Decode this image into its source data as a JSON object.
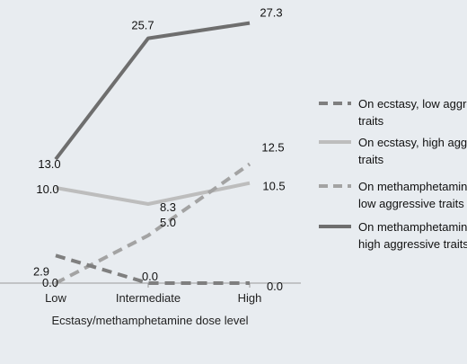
{
  "chart_data": {
    "type": "line",
    "categories": [
      "Low",
      "Intermediate",
      "High"
    ],
    "xlabel": "Ecstasy/methamphetamine dose level",
    "ylabel": "",
    "ylim": [
      0,
      30
    ],
    "grid": false,
    "legend_position": "right",
    "series": [
      {
        "name": "On ecstasy, low aggressive traits",
        "legend_lines": [
          "On ecstasy, low aggre",
          "traits"
        ],
        "values": [
          2.9,
          0.0,
          0.0
        ],
        "labels": [
          "2.9",
          "0.0",
          "0.0"
        ],
        "style": "dashed",
        "color": "#7f7f7f"
      },
      {
        "name": "On ecstasy, high aggressive traits",
        "legend_lines": [
          "On ecstasy, high agg",
          "traits"
        ],
        "values": [
          10.0,
          8.3,
          10.5
        ],
        "labels": [
          "10.0",
          "8.3",
          "10.5"
        ],
        "style": "solid",
        "color": "#bdbdbd"
      },
      {
        "name": "On methamphetamine, low aggressive traits",
        "legend_lines": [
          "On methamphetamin",
          "low aggressive traits"
        ],
        "values": [
          0.0,
          5.0,
          12.5
        ],
        "labels": [
          "0.0",
          "5.0",
          "12.5"
        ],
        "style": "dashed",
        "color": "#a3a3a3"
      },
      {
        "name": "On methamphetamine, high aggressive traits",
        "legend_lines": [
          "On methamphetamin",
          "high aggressive traits"
        ],
        "values": [
          13.0,
          25.7,
          27.3
        ],
        "labels": [
          "13.0",
          "25.7",
          "27.3"
        ],
        "style": "solid",
        "color": "#6e6e6e"
      }
    ]
  }
}
